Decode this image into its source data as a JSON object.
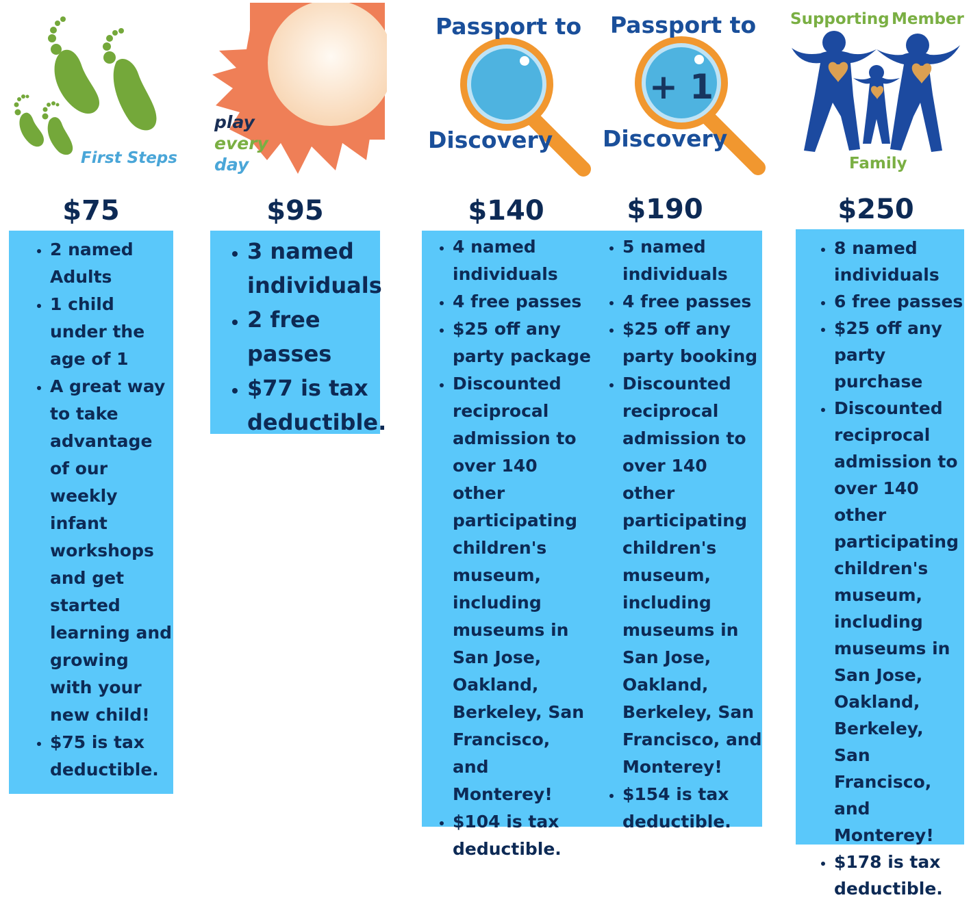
{
  "tiers": [
    {
      "logo_text": "First Steps",
      "logo_icon": "footprints-icon",
      "price": "$75",
      "features": [
        "2 named Adults",
        "1 child under the age of 1",
        "A great way to take advantage of our weekly infant workshops and get started learning and growing with your new child!",
        "$75 is tax deductible."
      ]
    },
    {
      "logo_text_lines": [
        "play",
        "every",
        "day"
      ],
      "logo_icon": "sun-icon",
      "price": "$95",
      "features": [
        "3 named individuals",
        "2 free passes",
        "$77 is tax deductible."
      ]
    },
    {
      "logo_text_top": "Passport to",
      "logo_text_bottom": "Discovery",
      "logo_icon": "magnifying-glass-icon",
      "price": "$140",
      "features": [
        "4 named individuals",
        "4 free passes",
        "$25 off any party package",
        "Discounted reciprocal admission to over 140 other participating children's museum, including museums in San Jose, Oakland, Berkeley, San Francisco, and Monterey!",
        "$104 is tax deductible."
      ]
    },
    {
      "logo_text_top": "Passport to",
      "logo_text_bottom": "Discovery",
      "logo_lens_text": "+ 1",
      "logo_icon": "magnifying-glass-icon",
      "price": "$190",
      "features": [
        "5 named individuals",
        "4 free passes",
        "$25 off any party booking",
        "Discounted reciprocal admission to over 140 other participating children's museum, including museums in San Jose, Oakland, Berkeley, San Francisco, and Monterey!",
        "$154 is tax deductible."
      ]
    },
    {
      "logo_text_left": "Supporting",
      "logo_text_right": "Member",
      "logo_text_bottom": "Family",
      "logo_icon": "family-icon",
      "price": "$250",
      "features": [
        "8 named individuals",
        "6 free passes",
        "$25 off any party purchase",
        "Discounted reciprocal admission to over 140 other participating children's museum, including museums in San Jose, Oakland, Berkeley, San Francisco, and Monterey!",
        "$178 is tax deductible."
      ]
    }
  ],
  "colors": {
    "card_bg": "#5ac8fa",
    "text": "#0d2a55",
    "footprint_green": "#74a83a",
    "sun_orange": "#ef7f57",
    "lens_orange": "#f1972f",
    "lens_blue": "#4eb3e0",
    "passport_blue": "#1a4f9a",
    "family_blue": "#1c4aa0",
    "heart_gold": "#dca051",
    "logo_light_blue": "#4aa6d8",
    "logo_green": "#7aaf43"
  }
}
